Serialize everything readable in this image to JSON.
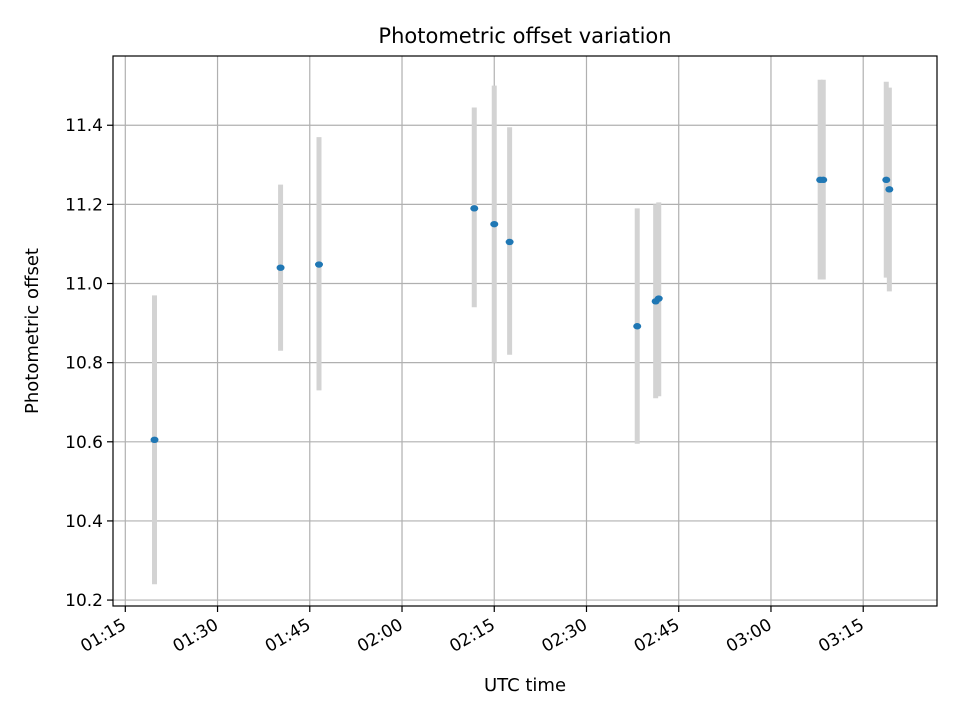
{
  "chart_data": {
    "type": "scatter",
    "title": "Photometric offset variation",
    "xlabel": "UTC time",
    "ylabel": "Photometric offset",
    "grid": true,
    "xlim": [
      "01:13",
      "03:27"
    ],
    "ylim": [
      10.185,
      11.575
    ],
    "x_ticks": [
      "01:15",
      "01:30",
      "01:45",
      "02:00",
      "02:15",
      "02:30",
      "02:45",
      "03:00",
      "03:15"
    ],
    "y_ticks": [
      "10.2",
      "10.4",
      "10.6",
      "10.8",
      "11.0",
      "11.2",
      "11.4"
    ],
    "colors": {
      "points": "#1f77b4",
      "errorbars": "#d3d3d3",
      "grid": "#b0b0b0",
      "axes": "#000000"
    },
    "points": [
      {
        "time": "01:19:45",
        "y": 10.605,
        "yerr_low": 10.24,
        "yerr_high": 10.97
      },
      {
        "time": "01:40:15",
        "y": 11.04,
        "yerr_low": 10.83,
        "yerr_high": 11.25
      },
      {
        "time": "01:46:30",
        "y": 11.048,
        "yerr_low": 10.73,
        "yerr_high": 11.37
      },
      {
        "time": "02:11:45",
        "y": 11.19,
        "yerr_low": 10.94,
        "yerr_high": 11.445
      },
      {
        "time": "02:15:00",
        "y": 11.15,
        "yerr_low": 10.8,
        "yerr_high": 11.5
      },
      {
        "time": "02:17:30",
        "y": 11.105,
        "yerr_low": 10.82,
        "yerr_high": 11.395
      },
      {
        "time": "02:38:15",
        "y": 10.892,
        "yerr_low": 10.595,
        "yerr_high": 11.19
      },
      {
        "time": "02:41:15",
        "y": 10.955,
        "yerr_low": 10.71,
        "yerr_high": 11.2
      },
      {
        "time": "02:41:45",
        "y": 10.962,
        "yerr_low": 10.715,
        "yerr_high": 11.205
      },
      {
        "time": "03:08:00",
        "y": 11.262,
        "yerr_low": 11.01,
        "yerr_high": 11.515
      },
      {
        "time": "03:08:30",
        "y": 11.262,
        "yerr_low": 11.01,
        "yerr_high": 11.515
      },
      {
        "time": "03:18:45",
        "y": 11.262,
        "yerr_low": 11.015,
        "yerr_high": 11.51
      },
      {
        "time": "03:19:15",
        "y": 11.238,
        "yerr_low": 10.98,
        "yerr_high": 11.495
      }
    ]
  }
}
